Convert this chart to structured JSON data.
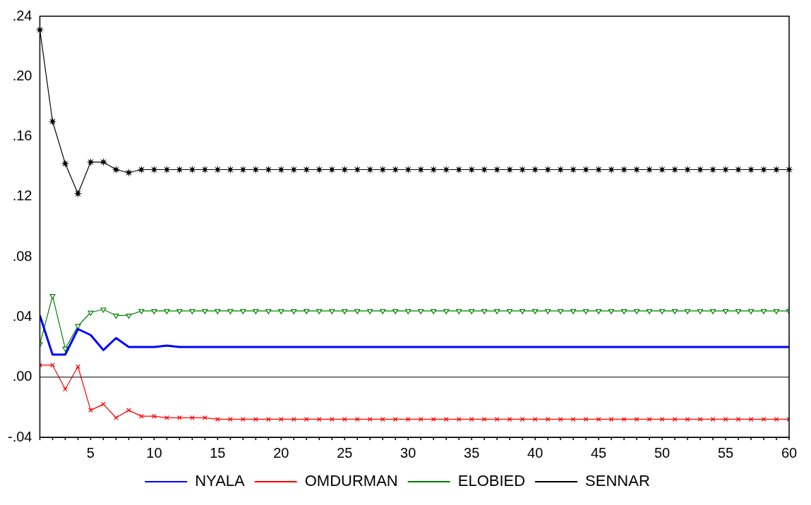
{
  "chart_data": {
    "type": "line",
    "x": [
      1,
      2,
      3,
      4,
      5,
      6,
      7,
      8,
      9,
      10,
      11,
      12,
      13,
      14,
      15,
      16,
      17,
      18,
      19,
      20,
      21,
      22,
      23,
      24,
      25,
      26,
      27,
      28,
      29,
      30,
      31,
      32,
      33,
      34,
      35,
      36,
      37,
      38,
      39,
      40,
      41,
      42,
      43,
      44,
      45,
      46,
      47,
      48,
      49,
      50,
      51,
      52,
      53,
      54,
      55,
      56,
      57,
      58,
      59,
      60
    ],
    "series": [
      {
        "name": "NYALA",
        "color": "#0000ff",
        "marker": "none",
        "values": [
          0.041,
          0.015,
          0.015,
          0.032,
          0.028,
          0.018,
          0.026,
          0.02,
          0.02,
          0.02,
          0.021,
          0.02,
          0.02,
          0.02,
          0.02,
          0.02,
          0.02,
          0.02,
          0.02,
          0.02,
          0.02,
          0.02,
          0.02,
          0.02,
          0.02,
          0.02,
          0.02,
          0.02,
          0.02,
          0.02,
          0.02,
          0.02,
          0.02,
          0.02,
          0.02,
          0.02,
          0.02,
          0.02,
          0.02,
          0.02,
          0.02,
          0.02,
          0.02,
          0.02,
          0.02,
          0.02,
          0.02,
          0.02,
          0.02,
          0.02,
          0.02,
          0.02,
          0.02,
          0.02,
          0.02,
          0.02,
          0.02,
          0.02,
          0.02,
          0.02
        ]
      },
      {
        "name": "OMDURMAN",
        "color": "#ff0000",
        "marker": "cross",
        "values": [
          0.008,
          0.008,
          -0.008,
          0.007,
          -0.022,
          -0.018,
          -0.027,
          -0.022,
          -0.026,
          -0.026,
          -0.027,
          -0.027,
          -0.027,
          -0.027,
          -0.028,
          -0.028,
          -0.028,
          -0.028,
          -0.028,
          -0.028,
          -0.028,
          -0.028,
          -0.028,
          -0.028,
          -0.028,
          -0.028,
          -0.028,
          -0.028,
          -0.028,
          -0.028,
          -0.028,
          -0.028,
          -0.028,
          -0.028,
          -0.028,
          -0.028,
          -0.028,
          -0.028,
          -0.028,
          -0.028,
          -0.028,
          -0.028,
          -0.028,
          -0.028,
          -0.028,
          -0.028,
          -0.028,
          -0.028,
          -0.028,
          -0.028,
          -0.028,
          -0.028,
          -0.028,
          -0.028,
          -0.028,
          -0.028,
          -0.028,
          -0.028,
          -0.028,
          -0.028
        ]
      },
      {
        "name": "ELOBIED",
        "color": "#008000",
        "marker": "triangle",
        "values": [
          0.022,
          0.054,
          0.019,
          0.034,
          0.043,
          0.045,
          0.041,
          0.041,
          0.044,
          0.044,
          0.044,
          0.044,
          0.044,
          0.044,
          0.044,
          0.044,
          0.044,
          0.044,
          0.044,
          0.044,
          0.044,
          0.044,
          0.044,
          0.044,
          0.044,
          0.044,
          0.044,
          0.044,
          0.044,
          0.044,
          0.044,
          0.044,
          0.044,
          0.044,
          0.044,
          0.044,
          0.044,
          0.044,
          0.044,
          0.044,
          0.044,
          0.044,
          0.044,
          0.044,
          0.044,
          0.044,
          0.044,
          0.044,
          0.044,
          0.044,
          0.044,
          0.044,
          0.044,
          0.044,
          0.044,
          0.044,
          0.044,
          0.044,
          0.044,
          0.044
        ]
      },
      {
        "name": "SENNAR",
        "color": "#000000",
        "marker": "star",
        "values": [
          0.231,
          0.17,
          0.142,
          0.122,
          0.143,
          0.143,
          0.138,
          0.136,
          0.138,
          0.138,
          0.138,
          0.138,
          0.138,
          0.138,
          0.138,
          0.138,
          0.138,
          0.138,
          0.138,
          0.138,
          0.138,
          0.138,
          0.138,
          0.138,
          0.138,
          0.138,
          0.138,
          0.138,
          0.138,
          0.138,
          0.138,
          0.138,
          0.138,
          0.138,
          0.138,
          0.138,
          0.138,
          0.138,
          0.138,
          0.138,
          0.138,
          0.138,
          0.138,
          0.138,
          0.138,
          0.138,
          0.138,
          0.138,
          0.138,
          0.138,
          0.138,
          0.138,
          0.138,
          0.138,
          0.138,
          0.138,
          0.138,
          0.138,
          0.138,
          0.138
        ]
      }
    ],
    "xlim": [
      1,
      60
    ],
    "xticks": [
      5,
      10,
      15,
      20,
      25,
      30,
      35,
      40,
      45,
      50,
      55,
      60
    ],
    "ylim": [
      -0.04,
      0.24
    ],
    "yticks": [
      {
        "value": -0.04,
        "label": "-.04"
      },
      {
        "value": 0,
        "label": ".00"
      },
      {
        "value": 0.04,
        "label": ".04"
      },
      {
        "value": 0.08,
        "label": ".08"
      },
      {
        "value": 0.12,
        "label": ".12"
      },
      {
        "value": 0.16,
        "label": ".16"
      },
      {
        "value": 0.2,
        "label": ".20"
      },
      {
        "value": 0.24,
        "label": ".24"
      }
    ],
    "ref_lines": [
      {
        "axis": "y",
        "value": 0,
        "color": "#000000"
      }
    ],
    "grid": false,
    "legend": "bottom"
  }
}
